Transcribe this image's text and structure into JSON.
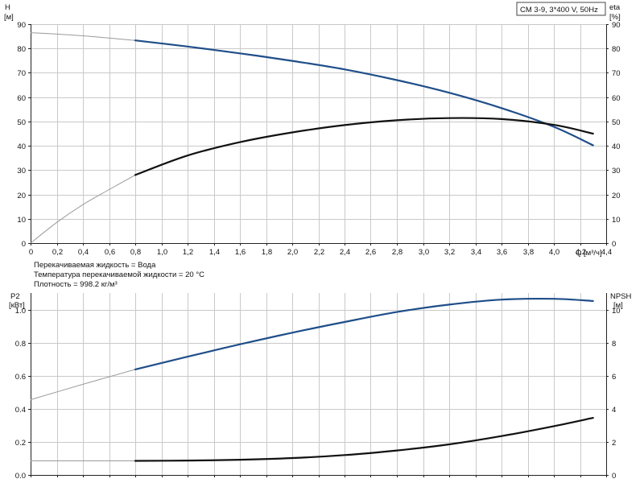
{
  "model_label": "CM 3-9, 3*400 V, 50Hz",
  "conditions": [
    "Перекачиваемая жидкость = Вода",
    "Температура перекачиваемой жидкости = 20 °C",
    "Плотность = 998.2 кг/м³"
  ],
  "colors": {
    "blue": "#1f4e89",
    "black": "#111111",
    "faded": "#9a9a9a",
    "grid": "#c9c9c9"
  },
  "chart_data": [
    {
      "type": "line",
      "x": {
        "label": "Q [м³/ч]",
        "min": 0,
        "max": 4.4,
        "step": 0.2,
        "ticks": [
          "0",
          "0,2",
          "0,4",
          "0,6",
          "0,8",
          "1,0",
          "1,2",
          "1,4",
          "1,6",
          "1,8",
          "2,0",
          "2,2",
          "2,4",
          "2,6",
          "2,8",
          "3,0",
          "3,2",
          "3,4",
          "3,6",
          "3,8",
          "4,0",
          "4,2",
          "4,4"
        ]
      },
      "y_left": {
        "label": "H",
        "unit": "[м]",
        "min": 0,
        "max": 90,
        "ticks": [
          "0",
          "10",
          "20",
          "30",
          "40",
          "50",
          "60",
          "70",
          "80",
          "90"
        ]
      },
      "y_right": {
        "label": "eta",
        "unit": "[%]",
        "min": 0,
        "max": 90,
        "ticks": [
          "0",
          "10",
          "20",
          "30",
          "40",
          "50",
          "60",
          "70",
          "80",
          "90"
        ]
      },
      "grid": true,
      "series": [
        {
          "color": "blue",
          "axis": "left",
          "operating_from": 0.8,
          "points": [
            [
              0,
              86.5
            ],
            [
              0.4,
              85.2
            ],
            [
              0.8,
              83.3
            ],
            [
              1.2,
              80.8
            ],
            [
              1.6,
              78.0
            ],
            [
              2.0,
              74.9
            ],
            [
              2.4,
              71.4
            ],
            [
              2.8,
              67.0
            ],
            [
              3.2,
              61.8
            ],
            [
              3.6,
              55.5
            ],
            [
              4.0,
              47.8
            ],
            [
              4.3,
              40.2
            ]
          ]
        },
        {
          "color": "black",
          "axis": "right",
          "operating_from": 0.8,
          "points": [
            [
              0,
              0
            ],
            [
              0.2,
              8.5
            ],
            [
              0.4,
              15.8
            ],
            [
              0.6,
              22.0
            ],
            [
              0.8,
              28.0
            ],
            [
              1.2,
              36.0
            ],
            [
              1.6,
              41.5
            ],
            [
              2.0,
              45.5
            ],
            [
              2.4,
              48.5
            ],
            [
              2.8,
              50.5
            ],
            [
              3.2,
              51.4
            ],
            [
              3.6,
              51.0
            ],
            [
              4.0,
              48.6
            ],
            [
              4.3,
              45.0
            ]
          ]
        }
      ]
    },
    {
      "type": "line",
      "x": {
        "min": 0,
        "max": 4.4,
        "step": 0.2
      },
      "y_left": {
        "label": "P2",
        "unit": "[кВт]",
        "min": 0,
        "max": 1.1,
        "ticks": [
          "0.0",
          "0.2",
          "0.4",
          "0.6",
          "0.8",
          "1.0"
        ],
        "tick_values": [
          0,
          0.2,
          0.4,
          0.6,
          0.8,
          1.0
        ]
      },
      "y_right": {
        "label": "NPSH",
        "unit": "[м]",
        "min": 0,
        "max": 11,
        "ticks": [
          "0",
          "2",
          "4",
          "6",
          "8",
          "10"
        ],
        "tick_values": [
          0,
          2,
          4,
          6,
          8,
          10
        ]
      },
      "grid": true,
      "series": [
        {
          "color": "blue",
          "axis": "left",
          "operating_from": 0.8,
          "points": [
            [
              0,
              0.455
            ],
            [
              0.4,
              0.548
            ],
            [
              0.8,
              0.638
            ],
            [
              1.2,
              0.715
            ],
            [
              1.6,
              0.79
            ],
            [
              2.0,
              0.86
            ],
            [
              2.4,
              0.925
            ],
            [
              2.8,
              0.985
            ],
            [
              3.2,
              1.03
            ],
            [
              3.6,
              1.06
            ],
            [
              4.0,
              1.065
            ],
            [
              4.3,
              1.052
            ]
          ]
        },
        {
          "color": "black",
          "axis": "right",
          "operating_from": 0.8,
          "points": [
            [
              0,
              0.85
            ],
            [
              0.8,
              0.85
            ],
            [
              1.2,
              0.87
            ],
            [
              1.6,
              0.92
            ],
            [
              2.0,
              1.02
            ],
            [
              2.4,
              1.2
            ],
            [
              2.8,
              1.48
            ],
            [
              3.2,
              1.85
            ],
            [
              3.6,
              2.35
            ],
            [
              4.0,
              2.95
            ],
            [
              4.3,
              3.45
            ]
          ]
        }
      ]
    }
  ]
}
